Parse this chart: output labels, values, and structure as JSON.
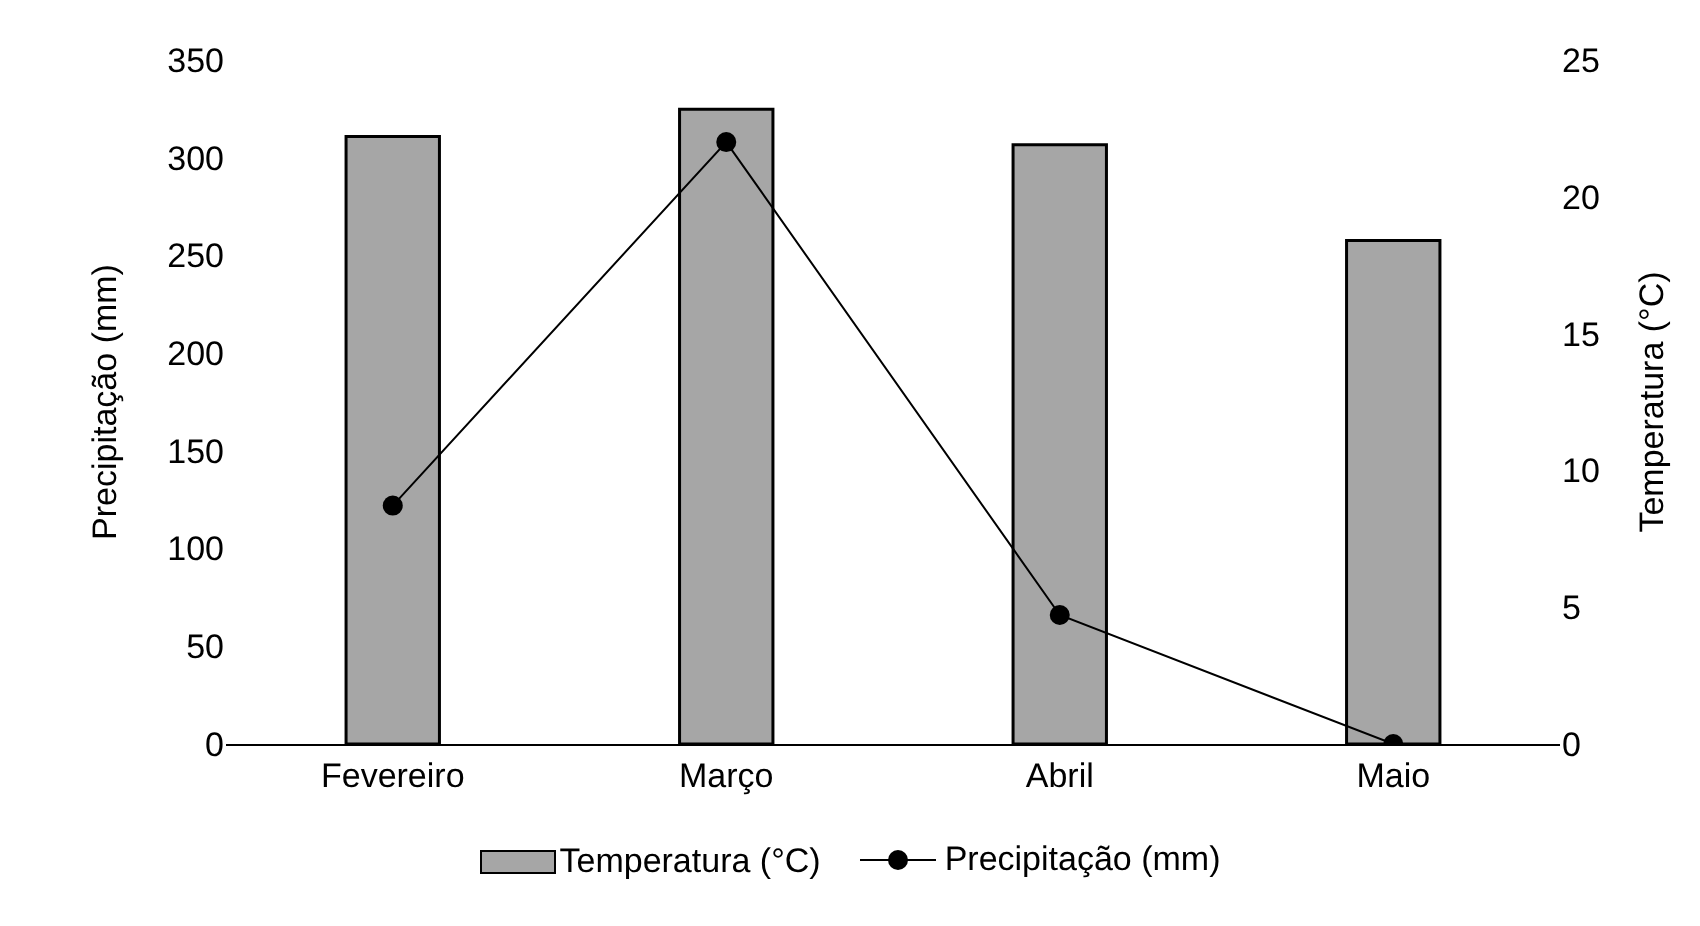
{
  "chart_data": {
    "type": "bar",
    "categories": [
      "Fevereiro",
      "Março",
      "Abril",
      "Maio"
    ],
    "ylabel": "Precipitação (mm)",
    "y2label": "Temperatura (°C)",
    "ylim": [
      0,
      350
    ],
    "yticks": [
      0,
      50,
      100,
      150,
      200,
      250,
      300,
      350
    ],
    "y2lim": [
      0,
      25
    ],
    "y2ticks": [
      0,
      5,
      10,
      15,
      20,
      25
    ],
    "series": [
      {
        "name": "Temperatura (°C)",
        "axis": "y2",
        "color": "#a6a6a6",
        "values": [
          22.2,
          23.2,
          21.9,
          18.4
        ]
      },
      {
        "name": "Precipitação (mm)",
        "type": "line",
        "color": "#000000",
        "marker": "circle",
        "values": [
          122,
          308,
          66,
          0
        ]
      }
    ],
    "grid": false,
    "legend": "bottom"
  }
}
